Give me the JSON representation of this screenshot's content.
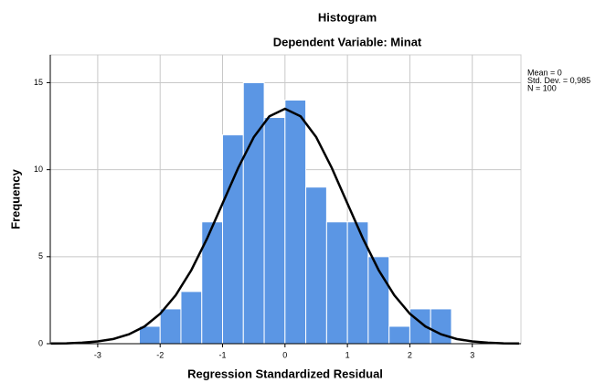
{
  "chart_data": {
    "type": "histogram",
    "title": "Histogram",
    "subtitle": "Dependent Variable: Minat",
    "x_label": "Regression Standardized Residual",
    "y_label": "Frequency",
    "annotations": [
      "Mean = 0",
      "Std. Dev. = 0,985",
      "N = 100"
    ],
    "bins": [
      -2.333,
      -2,
      -1.667,
      -1.333,
      -1,
      -0.667,
      -0.333,
      0,
      0.333,
      0.667,
      1,
      1.333,
      1.667,
      2,
      2.333,
      2.667
    ],
    "values": [
      1,
      2,
      3,
      7,
      12,
      15,
      13,
      14,
      9,
      7,
      7,
      5,
      1,
      2,
      2
    ],
    "color": "#5b96e4",
    "curve": {
      "color": "#000000",
      "x": [
        -3.75,
        -3.5,
        -3.25,
        -3,
        -2.75,
        -2.5,
        -2.25,
        -2,
        -1.75,
        -1.5,
        -1.25,
        -1,
        -0.75,
        -0.5,
        -0.25,
        0,
        0.25,
        0.5,
        0.75,
        1,
        1.25,
        1.5,
        1.75,
        2,
        2.25,
        2.5,
        2.75,
        3,
        3.25,
        3.5,
        3.75
      ],
      "values": [
        0.01,
        0.02,
        0.06,
        0.13,
        0.27,
        0.54,
        0.99,
        1.72,
        2.79,
        4.23,
        6.03,
        8.06,
        10.1,
        11.87,
        13.07,
        13.5,
        13.07,
        11.87,
        10.1,
        8.06,
        6.03,
        4.23,
        2.79,
        1.72,
        0.99,
        0.54,
        0.27,
        0.13,
        0.06,
        0.02,
        0.01
      ]
    },
    "xlim": [
      -3.76,
      3.78
    ],
    "ylim": [
      0,
      16.6
    ],
    "xticks": [
      -3,
      -2,
      -1,
      0,
      1,
      2,
      3
    ],
    "yticks": [
      0,
      5,
      10,
      15
    ],
    "grid": true
  }
}
